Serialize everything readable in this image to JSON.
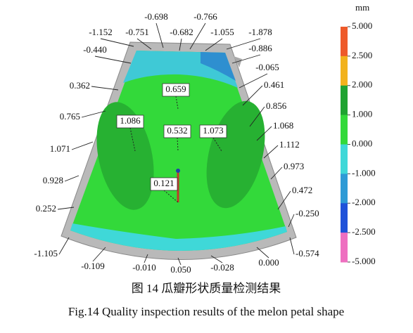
{
  "legend": {
    "unit": "mm",
    "labels": [
      "5.000",
      "2.500",
      "2.000",
      "1.000",
      "0.000",
      "-1.000",
      "-2.000",
      "-2.500",
      "-5.000"
    ],
    "colors": [
      "#ee5a2a",
      "#f2b21c",
      "#1fa331",
      "#33d93a",
      "#3fd8d8",
      "#2e9bd6",
      "#1f52d9",
      "#ee6fc0"
    ]
  },
  "annotations": [
    "-0.698",
    "-0.766",
    "-1.152",
    "-0.751",
    "-0.682",
    "-1.055",
    "-1.878",
    "-0.440",
    "-0.886",
    "-0.065",
    "0.362",
    "0.461",
    "0.765",
    "0.856",
    "1.068",
    "1.071",
    "1.112",
    "0.973",
    "0.928",
    "0.472",
    "0.252",
    "-0.250",
    "-1.105",
    "-0.574",
    "-0.109",
    "-0.010",
    "0.050",
    "-0.028",
    "0.000"
  ],
  "boxed_annotations": [
    "0.659",
    "1.086",
    "0.532",
    "1.073",
    "0.121"
  ],
  "caption": {
    "cn": "图 14  瓜瓣形状质量检测结果",
    "en": "Fig.14  Quality inspection results of the melon petal shape"
  }
}
